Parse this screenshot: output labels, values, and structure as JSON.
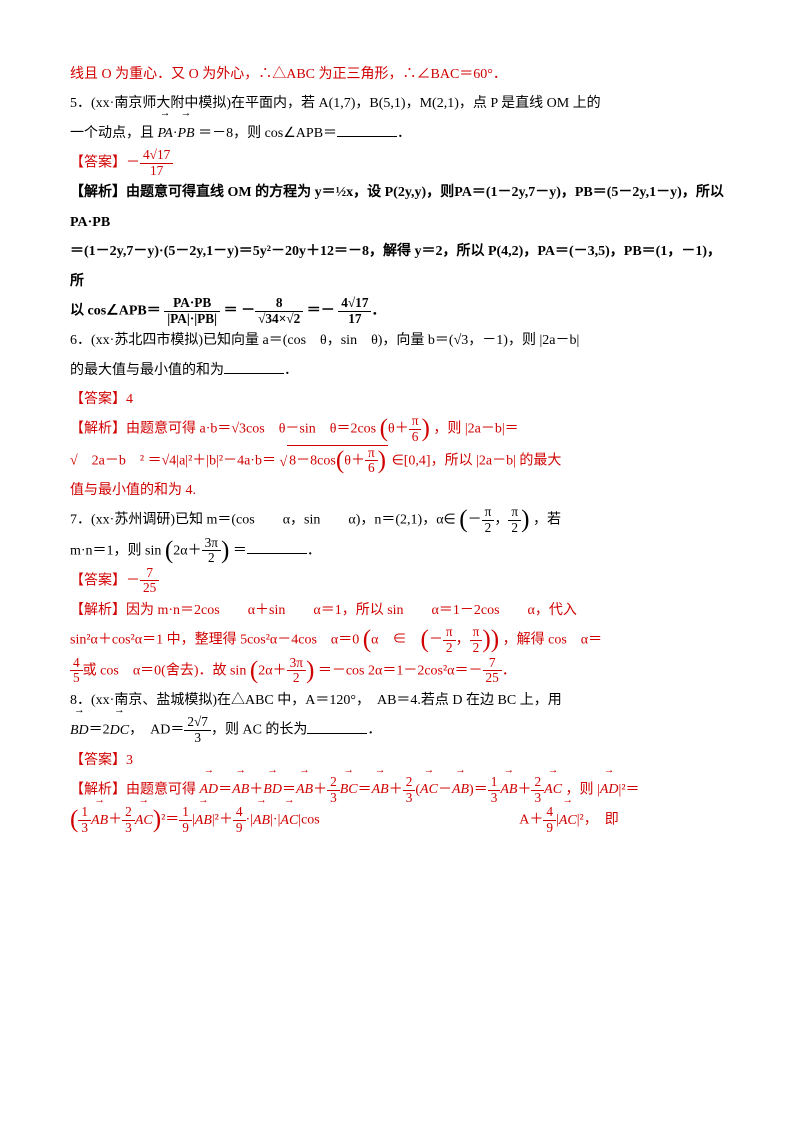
{
  "line_top": "线且 O 为重心．又 O 为外心，∴△ABC 为正三角形，∴∠BAC＝60°．",
  "q5": {
    "prefix": "5．(xx·南京师大附中模拟)在平面内，若 A(1,7)，B(5,1)，M(2,1)，点 P 是直线 OM 上的",
    "line2_a": "一个动点，且",
    "pa": "PA",
    "pb": "PB",
    "line2_b": "＝－8，则 cos∠APB＝",
    "ans_label": "【答案】",
    "ans_val_prefix": "－",
    "ans_num": "4√17",
    "ans_den": "17",
    "img_text": "【解析】由题意可得直线 OM 的方程为 y＝½x，设 P(2y,y)，则PA＝(1－2y,7－y)，PB＝(5－2y,1－y)，所以PA·PB",
    "img_text2": "＝(1－2y,7－y)·(5－2y,1－y)＝5y²－20y＋12＝－8，解得 y＝2，所以 P(4,2)，PA＝(－3,5)，PB＝(1，－1)，所",
    "img_text3_a": "以 cos∠APB＝",
    "img_frac1_num": "PA·PB",
    "img_frac1_den": "|PA|·|PB|",
    "img_text3_b": "＝",
    "img_frac2_num": "8",
    "img_frac2_den": "√34×√2",
    "img_text3_c": "＝－",
    "img_frac3_num": "4√17",
    "img_frac3_den": "17"
  },
  "q6": {
    "prefix": "6．(xx·苏北四市模拟)已知向量 a＝(cos　θ，sin　θ)，向量 b＝(√3，－1)，则 |2a－b|",
    "line2": "的最大值与最小值的和为",
    "ans_label": "【答案】",
    "ans_val": "4",
    "sol_a": "【解析】由题意可得 a·b＝√3cos　θ－sin　θ＝2cos",
    "sol_paren1": "θ＋",
    "sol_pi6_num": "π",
    "sol_pi6_den": "6",
    "sol_b": "，则 |2a－b|＝",
    "sol_line2a": "√　2a－b　² ＝√4|a|²＋|b|²－4a·b＝",
    "sol_inner": "8－8cos",
    "sol_line2b": "∈[0,4]，所以 |2a－b| 的最大",
    "sol_line3": "值与最小值的和为 4."
  },
  "q7": {
    "prefix": "7．(xx·苏州调研)已知 m＝(cos　　α，sin　　α)，n＝(2,1)，α∈",
    "range_a": "－",
    "range_num1": "π",
    "range_den1": "2",
    "range_num2": "π",
    "range_den2": "2",
    "prefix_end": "，若",
    "line2a": "m·n＝1，则 sin",
    "sin_arg_a": "2α＋",
    "sin_arg_num": "3π",
    "sin_arg_den": "2",
    "line2b": "＝",
    "ans_label": "【答案】",
    "ans_prefix": "－",
    "ans_num": "7",
    "ans_den": "25",
    "sol_a": "【解析】因为 m·n＝2cos　　α＋sin　　α＝1，所以 sin　　α＝1－2cos　　α，代入",
    "sol_b": "sin²α＋cos²α＝1 中，整理得 5cos²α－4cos　α＝0",
    "sol_paren_inner": "α　∈",
    "sol_c": "，解得 cos　α＝",
    "sol_line3_num": "4",
    "sol_line3_den": "5",
    "sol_line3_a": "或 cos　α＝0(舍去)．故 sin",
    "sol_line3_b": "＝－cos 2α＝1－2cos²α＝－",
    "sol_line3_num2": "7",
    "sol_line3_den2": "25"
  },
  "q8": {
    "prefix": "8．(xx·南京、盐城模拟)在△ABC 中，A＝120°，　AB＝4.若点 D 在边 BC 上，用",
    "bd": "BD",
    "dc": "DC",
    "line2a": "＝2",
    "line2b": "，　AD＝",
    "ad_num": "2√7",
    "ad_den": "3",
    "line2c": "，则 AC 的长为",
    "ans_label": "【答案】",
    "ans_val": "3",
    "sol_a": "【解析】由题意可得",
    "ad": "AD",
    "ab": "AB",
    "bc": "BC",
    "ac": "AC",
    "sol_eq": "＝",
    "sol_plus": "＋",
    "frac13_num": "1",
    "frac13_den": "3",
    "frac23_num": "2",
    "frac23_den": "3",
    "sol_b": "，则 |",
    "sol_c": "|²＝",
    "sol_line2_a": "²＝",
    "frac19_num": "1",
    "frac19_den": "9",
    "frac49_num": "4",
    "frac49_den": "9",
    "sol_line2_b": "|²＋",
    "sol_line2_c": "·|",
    "sol_line2_d": "|·|",
    "sol_line2_e": "|cos",
    "sol_line2_f": "A＋",
    "sol_line2_g": "|²，　即"
  }
}
